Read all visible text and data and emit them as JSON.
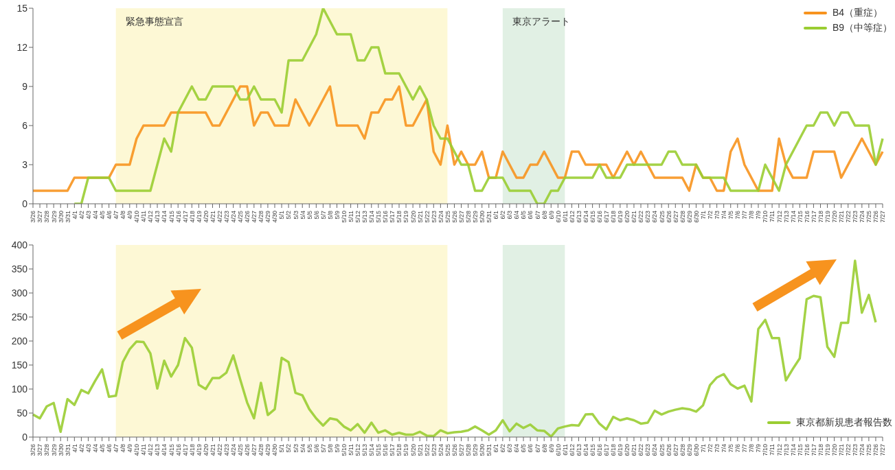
{
  "chart_data": [
    {
      "type": "line",
      "categories": [
        "3/26",
        "3/27",
        "3/28",
        "3/29",
        "3/30",
        "3/31",
        "4/1",
        "4/2",
        "4/3",
        "4/4",
        "4/5",
        "4/6",
        "4/7",
        "4/8",
        "4/9",
        "4/10",
        "4/11",
        "4/12",
        "4/13",
        "4/14",
        "4/15",
        "4/16",
        "4/17",
        "4/18",
        "4/19",
        "4/20",
        "4/21",
        "4/22",
        "4/23",
        "4/24",
        "4/25",
        "4/26",
        "4/27",
        "4/28",
        "4/29",
        "4/30",
        "5/1",
        "5/2",
        "5/3",
        "5/4",
        "5/5",
        "5/6",
        "5/7",
        "5/8",
        "5/9",
        "5/10",
        "5/11",
        "5/12",
        "5/13",
        "5/14",
        "5/15",
        "5/16",
        "5/17",
        "5/18",
        "5/19",
        "5/20",
        "5/21",
        "5/22",
        "5/23",
        "5/24",
        "5/25",
        "5/26",
        "5/27",
        "5/28",
        "5/29",
        "5/30",
        "5/31",
        "6/1",
        "6/2",
        "6/3",
        "6/4",
        "6/5",
        "6/6",
        "6/7",
        "6/8",
        "6/9",
        "6/10",
        "6/11",
        "6/12",
        "6/13",
        "6/14",
        "6/15",
        "6/16",
        "6/17",
        "6/18",
        "6/19",
        "6/20",
        "6/21",
        "6/22",
        "6/23",
        "6/24",
        "6/25",
        "6/26",
        "6/27",
        "6/28",
        "6/29",
        "6/30",
        "7/1",
        "7/2",
        "7/3",
        "7/4",
        "7/5",
        "7/6",
        "7/7",
        "7/8",
        "7/9",
        "7/10",
        "7/11",
        "7/12",
        "7/13",
        "7/14",
        "7/15",
        "7/16",
        "7/17",
        "7/18",
        "7/19",
        "7/20",
        "7/21",
        "7/22",
        "7/23",
        "7/24",
        "7/25",
        "7/26",
        "7/27"
      ],
      "series": [
        {
          "name": "B4（重症）",
          "color": "#f7931e",
          "values": [
            1,
            1,
            1,
            1,
            1,
            1,
            2,
            2,
            2,
            2,
            2,
            2,
            3,
            3,
            3,
            5,
            6,
            6,
            6,
            6,
            7,
            7,
            7,
            7,
            7,
            7,
            6,
            6,
            7,
            8,
            9,
            9,
            6,
            7,
            7,
            6,
            6,
            6,
            8,
            7,
            6,
            7,
            8,
            9,
            6,
            6,
            6,
            6,
            5,
            7,
            7,
            8,
            8,
            9,
            6,
            6,
            7,
            8,
            4,
            3,
            6,
            3,
            4,
            3,
            3,
            4,
            2,
            2,
            4,
            3,
            2,
            2,
            3,
            3,
            4,
            3,
            2,
            2,
            4,
            4,
            3,
            3,
            3,
            3,
            2,
            3,
            4,
            3,
            4,
            3,
            2,
            2,
            2,
            2,
            2,
            1,
            3,
            2,
            2,
            1,
            1,
            4,
            5,
            3,
            2,
            1,
            1,
            1,
            5,
            3,
            2,
            2,
            2,
            4,
            4,
            4,
            4,
            2,
            3,
            4,
            5,
            4,
            3,
            4
          ]
        },
        {
          "name": "B9（中等症）",
          "color": "#9acd32",
          "values": [
            null,
            null,
            null,
            null,
            null,
            null,
            0,
            0,
            2,
            2,
            2,
            2,
            1,
            1,
            1,
            1,
            1,
            1,
            3,
            5,
            4,
            7,
            8,
            9,
            8,
            8,
            9,
            9,
            9,
            9,
            8,
            8,
            9,
            8,
            8,
            8,
            7,
            11,
            11,
            11,
            12,
            13,
            15,
            14,
            13,
            13,
            13,
            11,
            11,
            12,
            12,
            10,
            10,
            10,
            9,
            8,
            9,
            8,
            6,
            5,
            5,
            4,
            3,
            3,
            1,
            1,
            2,
            2,
            2,
            1,
            1,
            1,
            1,
            0,
            0,
            1,
            1,
            2,
            2,
            2,
            2,
            2,
            3,
            2,
            2,
            2,
            3,
            3,
            3,
            3,
            3,
            3,
            4,
            4,
            3,
            3,
            3,
            2,
            2,
            2,
            2,
            1,
            1,
            1,
            1,
            1,
            3,
            2,
            1,
            3,
            4,
            5,
            6,
            6,
            7,
            7,
            6,
            7,
            7,
            6,
            6,
            6,
            3,
            5
          ]
        }
      ],
      "ylim": [
        0,
        15
      ],
      "yticks": [
        0,
        3,
        6,
        9,
        12,
        15
      ],
      "legend": "top right",
      "marker": "none",
      "line_style": "solid",
      "bands": [
        {
          "axis": "x",
          "from": "4/7",
          "to": "5/25",
          "label": "緊急事態宣言",
          "color": "#fdf8d5"
        },
        {
          "axis": "x",
          "from": "6/2",
          "to": "6/11",
          "label": "東京アラート",
          "color": "#e1f0e4"
        }
      ]
    },
    {
      "type": "line",
      "categories": [
        "3/26",
        "3/27",
        "3/28",
        "3/29",
        "3/30",
        "3/31",
        "4/1",
        "4/2",
        "4/3",
        "4/4",
        "4/5",
        "4/6",
        "4/7",
        "4/8",
        "4/9",
        "4/10",
        "4/11",
        "4/12",
        "4/13",
        "4/14",
        "4/15",
        "4/16",
        "4/17",
        "4/18",
        "4/19",
        "4/20",
        "4/21",
        "4/22",
        "4/23",
        "4/24",
        "4/25",
        "4/26",
        "4/27",
        "4/28",
        "4/29",
        "4/30",
        "5/1",
        "5/2",
        "5/3",
        "5/4",
        "5/5",
        "5/6",
        "5/7",
        "5/8",
        "5/9",
        "5/10",
        "5/11",
        "5/12",
        "5/13",
        "5/14",
        "5/15",
        "5/16",
        "5/17",
        "5/18",
        "5/19",
        "5/20",
        "5/21",
        "5/22",
        "5/23",
        "5/24",
        "5/25",
        "5/26",
        "5/27",
        "5/28",
        "5/29",
        "5/30",
        "5/31",
        "6/1",
        "6/2",
        "6/3",
        "6/4",
        "6/5",
        "6/6",
        "6/7",
        "6/8",
        "6/9",
        "6/10",
        "6/11",
        "6/12",
        "6/13",
        "6/14",
        "6/15",
        "6/16",
        "6/17",
        "6/18",
        "6/19",
        "6/20",
        "6/21",
        "6/22",
        "6/23",
        "6/24",
        "6/25",
        "6/26",
        "6/27",
        "6/28",
        "6/29",
        "6/30",
        "7/1",
        "7/2",
        "7/3",
        "7/4",
        "7/5",
        "7/6",
        "7/7",
        "7/8",
        "7/9",
        "7/10",
        "7/11",
        "7/12",
        "7/13",
        "7/14",
        "7/15",
        "7/16",
        "7/17",
        "7/18",
        "7/19",
        "7/20",
        "7/21",
        "7/22",
        "7/23",
        "7/24",
        "7/25",
        "7/26",
        "7/27"
      ],
      "series": [
        {
          "name": "東京都新規患者報告数",
          "color": "#9acd32",
          "values": [
            47,
            39,
            64,
            71,
            11,
            79,
            67,
            98,
            91,
            117,
            141,
            84,
            86,
            156,
            183,
            199,
            198,
            174,
            101,
            159,
            126,
            150,
            206,
            186,
            109,
            100,
            123,
            123,
            134,
            170,
            120,
            72,
            39,
            113,
            46,
            58,
            165,
            156,
            92,
            87,
            58,
            39,
            24,
            39,
            36,
            22,
            14,
            27,
            9,
            30,
            9,
            14,
            5,
            9,
            5,
            5,
            11,
            3,
            2,
            14,
            8,
            10,
            11,
            14,
            22,
            14,
            5,
            14,
            35,
            12,
            28,
            19,
            26,
            14,
            13,
            1,
            18,
            22,
            25,
            24,
            47,
            48,
            28,
            16,
            42,
            35,
            39,
            35,
            28,
            30,
            55,
            47,
            53,
            57,
            60,
            58,
            53,
            66,
            108,
            124,
            131,
            110,
            101,
            107,
            74,
            225,
            244,
            206,
            206,
            118,
            142,
            164,
            287,
            294,
            291,
            188,
            167,
            238,
            238,
            367,
            259,
            296,
            239,
            null
          ]
        }
      ],
      "ylim": [
        0,
        400
      ],
      "yticks": [
        0,
        50,
        100,
        150,
        200,
        250,
        300,
        350,
        400
      ],
      "legend": "bottom right",
      "marker": "none",
      "line_style": "solid",
      "bands": [
        {
          "axis": "x",
          "from": "4/7",
          "to": "5/25",
          "color": "#fdf8d5"
        },
        {
          "axis": "x",
          "from": "6/2",
          "to": "6/11",
          "color": "#e1f0e4"
        }
      ]
    }
  ]
}
